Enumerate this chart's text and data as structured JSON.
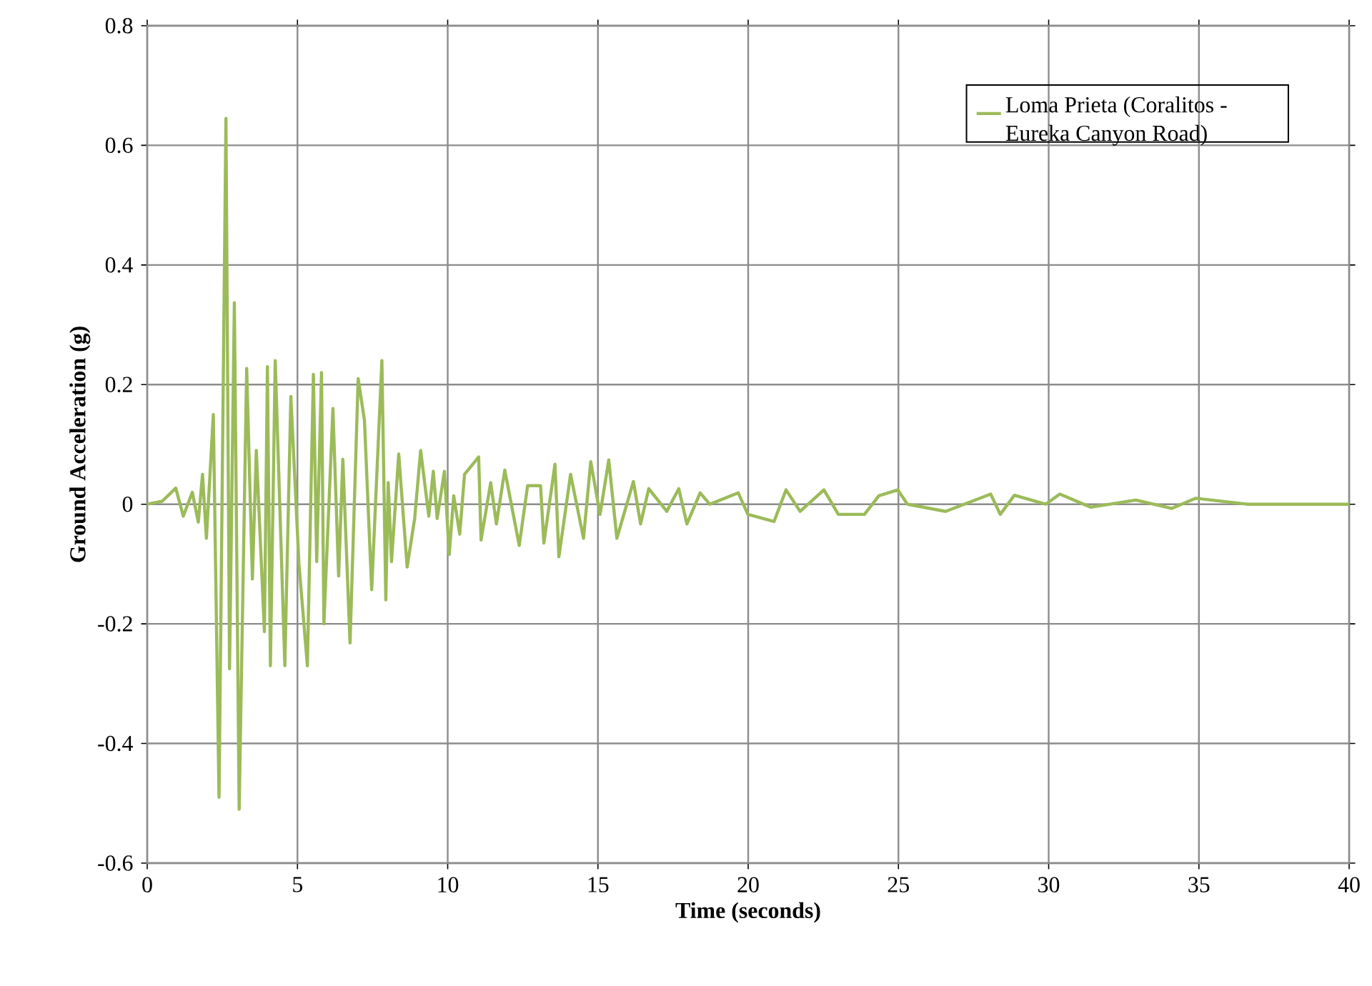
{
  "chart_data": {
    "type": "line",
    "xlabel": "Time (seconds)",
    "ylabel": "Ground Acceleration (g)",
    "xlim": [
      0,
      40
    ],
    "ylim": [
      -0.6,
      0.8
    ],
    "xticks": [
      0,
      5,
      10,
      15,
      20,
      25,
      30,
      35,
      40
    ],
    "yticks": [
      -0.6,
      -0.4,
      -0.2,
      0,
      0.2,
      0.4,
      0.6,
      0.8
    ],
    "grid": true,
    "legend": "top right",
    "marker": "none",
    "line_style": "solid",
    "series": [
      {
        "name": "Loma Prieta (Coralitos - Eureka  Canyon Road)",
        "color": "#9bbb59",
        "x": [
          0,
          0.5,
          0.95,
          1.2,
          1.5,
          1.7,
          1.84,
          1.97,
          2.2,
          2.39,
          2.62,
          2.74,
          2.9,
          3.06,
          3.31,
          3.5,
          3.63,
          3.9,
          4.0,
          4.1,
          4.26,
          4.58,
          4.78,
          5.05,
          5.33,
          5.53,
          5.64,
          5.8,
          5.88,
          6.18,
          6.37,
          6.51,
          6.75,
          7.02,
          7.23,
          7.47,
          7.81,
          7.94,
          8.02,
          8.13,
          8.37,
          8.65,
          8.9,
          9.1,
          9.37,
          9.52,
          9.65,
          9.89,
          10.05,
          10.2,
          10.4,
          10.56,
          11.03,
          11.11,
          11.43,
          11.62,
          11.9,
          12.38,
          12.66,
          13.09,
          13.2,
          13.57,
          13.7,
          14.09,
          14.52,
          14.76,
          15.07,
          15.36,
          15.63,
          16.18,
          16.42,
          16.69,
          17.29,
          17.69,
          17.96,
          18.4,
          18.72,
          19.67,
          19.99,
          20.86,
          21.26,
          21.73,
          22.52,
          23.0,
          23.87,
          24.35,
          24.98,
          25.3,
          26.57,
          28.07,
          28.39,
          28.86,
          29.9,
          30.37,
          31.4,
          32.9,
          34.1,
          34.9,
          36.6,
          40
        ],
        "values": [
          0,
          0.005,
          0.027,
          -0.02,
          0.02,
          -0.03,
          0.05,
          -0.057,
          0.15,
          -0.49,
          0.645,
          -0.275,
          0.337,
          -0.51,
          0.227,
          -0.125,
          0.09,
          -0.213,
          0.23,
          -0.27,
          0.24,
          -0.27,
          0.18,
          -0.1,
          -0.27,
          0.217,
          -0.096,
          0.22,
          -0.2,
          0.16,
          -0.12,
          0.075,
          -0.232,
          0.21,
          0.14,
          -0.143,
          0.24,
          -0.16,
          0.036,
          -0.096,
          0.084,
          -0.105,
          -0.024,
          0.09,
          -0.02,
          0.055,
          -0.024,
          0.055,
          -0.084,
          0.014,
          -0.05,
          0.05,
          0.079,
          -0.06,
          0.036,
          -0.033,
          0.057,
          -0.069,
          0.031,
          0.031,
          -0.065,
          0.067,
          -0.088,
          0.05,
          -0.057,
          0.071,
          -0.017,
          0.074,
          -0.057,
          0.038,
          -0.033,
          0.026,
          -0.012,
          0.026,
          -0.033,
          0.019,
          0,
          0.019,
          -0.017,
          -0.029,
          0.024,
          -0.012,
          0.024,
          -0.017,
          -0.017,
          0.014,
          0.024,
          0,
          -0.012,
          0.017,
          -0.017,
          0.015,
          0,
          0.017,
          -0.005,
          0.007,
          -0.007,
          0.01,
          0,
          0
        ]
      }
    ]
  }
}
